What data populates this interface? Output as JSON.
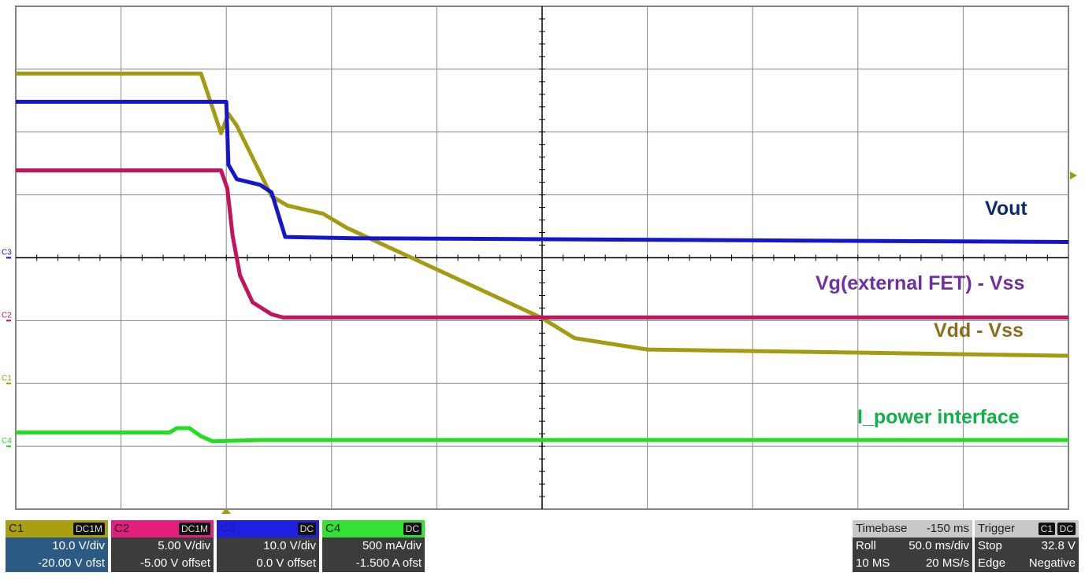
{
  "chart_data": {
    "type": "line",
    "xlim": [
      0,
      10
    ],
    "ylim": [
      -4,
      4
    ],
    "xticks": [
      0,
      1,
      2,
      3,
      4,
      5,
      6,
      7,
      8,
      9,
      10
    ],
    "yticks": [
      -4,
      -3,
      -2,
      -1,
      0,
      1,
      2,
      3,
      4
    ],
    "grid": true,
    "series": [
      {
        "name": "Vdd - Vss",
        "channel": "C1",
        "color": "#a39b12",
        "label_color": "#8a6d1e",
        "x": [
          0,
          1.76,
          1.85,
          1.95,
          2.02,
          2.1,
          2.43,
          2.58,
          2.92,
          3.14,
          5.0,
          5.31,
          6.0,
          10
        ],
        "values": [
          2.93,
          2.93,
          2.48,
          1.98,
          2.29,
          2.1,
          0.98,
          0.83,
          0.7,
          0.48,
          -0.96,
          -1.28,
          -1.46,
          -1.56
        ]
      },
      {
        "name": "Vg(external FET) - Vss",
        "channel": "C2",
        "color": "#c0145e",
        "label_color": "#7030a0",
        "x": [
          0,
          1.95,
          2.01,
          2.06,
          2.13,
          2.25,
          2.43,
          2.54,
          10
        ],
        "values": [
          1.39,
          1.39,
          1.1,
          0.35,
          -0.28,
          -0.71,
          -0.9,
          -0.95,
          -0.95
        ]
      },
      {
        "name": "Vout",
        "channel": "C3",
        "color": "#1515cc",
        "label_color": "#0d2a6e",
        "x": [
          0,
          2.0,
          2.02,
          2.1,
          2.32,
          2.43,
          2.56,
          3.22,
          10
        ],
        "values": [
          2.48,
          2.48,
          1.48,
          1.25,
          1.16,
          1.04,
          0.33,
          0.31,
          0.25
        ]
      },
      {
        "name": "I_power interface",
        "channel": "C4",
        "color": "#22dd22",
        "label_color": "#12b048",
        "x": [
          0,
          1.46,
          1.53,
          1.65,
          1.76,
          1.87,
          2.32,
          10
        ],
        "values": [
          -2.78,
          -2.78,
          -2.71,
          -2.71,
          -2.84,
          -2.92,
          -2.9,
          -2.9
        ]
      }
    ]
  },
  "status_bar": {
    "channels": [
      {
        "name": "C1",
        "coupling": "DC1M",
        "scale": "10.0 V/div",
        "offset": "-20.00 V ofst"
      },
      {
        "name": "C2",
        "coupling": "DC1M",
        "scale": "5.00 V/div",
        "offset": "-5.00 V offset"
      },
      {
        "name": "C3",
        "coupling": "DC",
        "scale": "10.0 V/div",
        "offset": "0.0 V offset"
      },
      {
        "name": "C4",
        "coupling": "DC",
        "scale": "500 mA/div",
        "offset": "-1.500 A ofst"
      }
    ],
    "timebase": {
      "title": "Timebase",
      "delay": "-150 ms",
      "mode": "Roll",
      "scale": "50.0 ms/div",
      "memory": "10 MS",
      "rate": "20 MS/s"
    },
    "trigger": {
      "title": "Trigger",
      "source": "C1",
      "coupling": "DC",
      "mode": "Stop",
      "level": "32.8 V",
      "type": "Edge",
      "slope": "Negative"
    }
  }
}
